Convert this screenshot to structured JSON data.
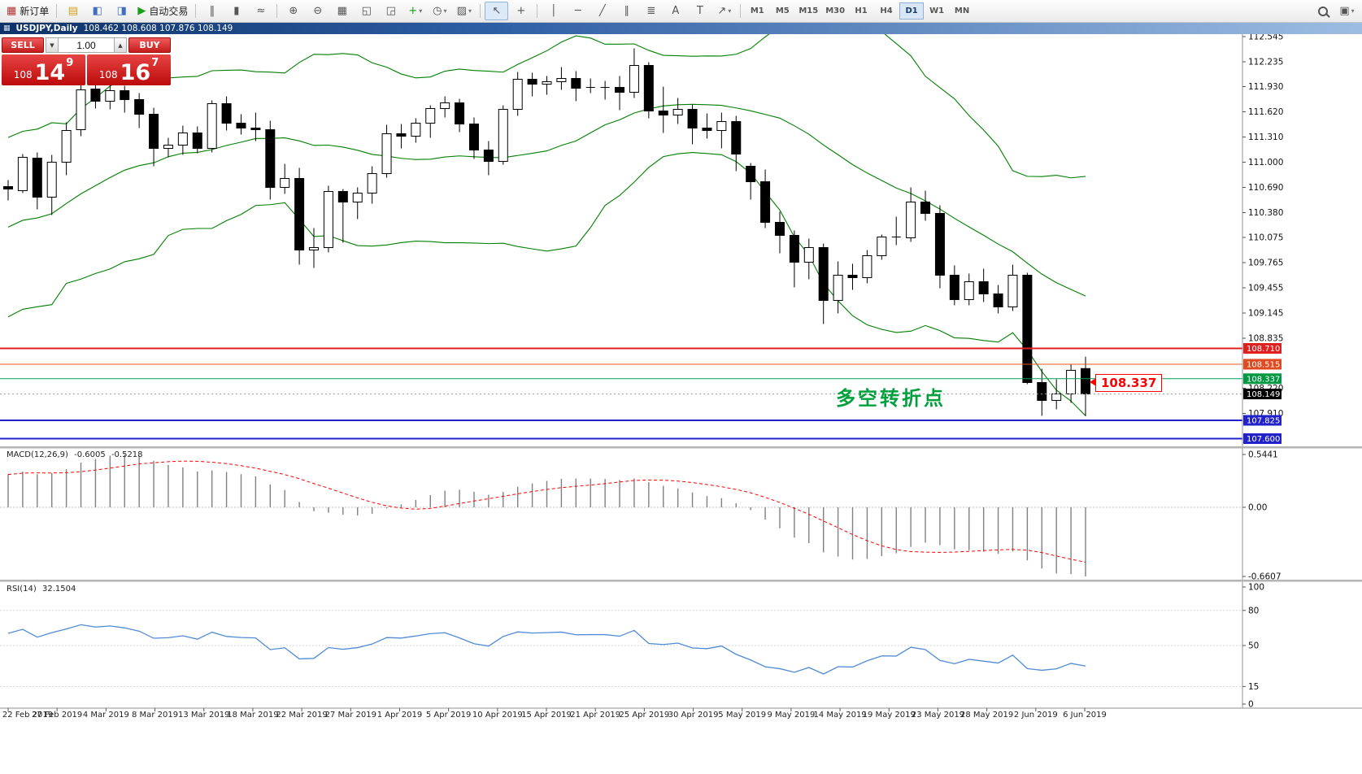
{
  "toolbar": {
    "items": [
      {
        "name": "new-order-button",
        "glyph": "▦",
        "color": "#b53333",
        "label": "新订单"
      },
      {
        "sep": true
      },
      {
        "name": "charts-icon",
        "glyph": "▤",
        "color": "#d4a017"
      },
      {
        "name": "navigator-icon",
        "glyph": "◧",
        "color": "#3f6fbf"
      },
      {
        "name": "terminal-icon",
        "glyph": "◨",
        "color": "#3f6fbf"
      },
      {
        "name": "autotrading-button",
        "glyph": "▶",
        "color": "#18a018",
        "label": "自动交易"
      },
      {
        "sep": true
      },
      {
        "name": "bar-chart-icon",
        "glyph": "‖"
      },
      {
        "name": "candlestick-chart-icon",
        "glyph": "▮"
      },
      {
        "name": "line-chart-icon",
        "glyph": "≈"
      },
      {
        "sep": true
      },
      {
        "name": "zoom-in-icon",
        "glyph": "⊕"
      },
      {
        "name": "zoom-out-icon",
        "glyph": "⊖"
      },
      {
        "name": "tile-windows-icon",
        "glyph": "▦"
      },
      {
        "name": "cascade-windows-icon",
        "glyph": "◱"
      },
      {
        "name": "arrange-windows-icon",
        "glyph": "◲"
      },
      {
        "name": "indicators-icon",
        "glyph": "+",
        "color": "#18a018",
        "dropdown": true
      },
      {
        "name": "periods-icon",
        "glyph": "◷",
        "dropdown": true
      },
      {
        "name": "templates-icon",
        "glyph": "▨",
        "dropdown": true
      },
      {
        "sep": true
      },
      {
        "name": "cursor-icon",
        "glyph": "↖",
        "active": true
      },
      {
        "name": "crosshair-icon",
        "glyph": "+"
      },
      {
        "sep": true
      },
      {
        "name": "vertical-line-icon",
        "glyph": "│"
      },
      {
        "name": "horizontal-line-icon",
        "glyph": "─"
      },
      {
        "name": "trendline-icon",
        "glyph": "╱"
      },
      {
        "name": "channel-icon",
        "glyph": "∥"
      },
      {
        "name": "fibonacci-icon",
        "glyph": "≣"
      },
      {
        "name": "text-icon",
        "glyph": "A"
      },
      {
        "name": "label-icon",
        "glyph": "T"
      },
      {
        "name": "arrows-icon",
        "glyph": "↗",
        "dropdown": true
      },
      {
        "sep": true
      },
      {
        "timeframes": true
      },
      {
        "spacer": true
      },
      {
        "name": "search-icon",
        "lens": true
      },
      {
        "name": "help-icon",
        "glyph": "▣",
        "dropdown": true
      }
    ],
    "timeframes": {
      "list": [
        "M1",
        "M5",
        "M15",
        "M30",
        "H1",
        "H4",
        "D1",
        "W1",
        "MN"
      ],
      "active": "D1"
    }
  },
  "title_bar": {
    "symbol": "USDJPY,Daily",
    "ohlc": "108.462 108.608 107.876 108.149"
  },
  "one_click": {
    "sell_label": "SELL",
    "buy_label": "BUY",
    "volume": "1.00",
    "sell_price": {
      "prefix": "108",
      "pips": "14",
      "sup": "9"
    },
    "buy_price": {
      "prefix": "108",
      "pips": "16",
      "sup": "7"
    }
  },
  "chart_data": {
    "type": "candlestick",
    "symbol": "USDJPY",
    "timeframe": "Daily",
    "ylim": [
      107.515,
      112.575
    ],
    "y_plain_ticks": [
      "112.545",
      "112.235",
      "111.930",
      "111.620",
      "111.310",
      "111.000",
      "110.690",
      "110.380",
      "110.075",
      "109.765",
      "109.455",
      "109.145",
      "108.835",
      "108.220",
      "107.910"
    ],
    "x_labels": [
      "22 Feb 2019",
      "27 Feb 2019",
      "4 Mar 2019",
      "8 Mar 2019",
      "13 Mar 2019",
      "18 Mar 2019",
      "22 Mar 2019",
      "27 Mar 2019",
      "1 Apr 2019",
      "5 Apr 2019",
      "10 Apr 2019",
      "15 Apr 2019",
      "21 Apr 2019",
      "25 Apr 2019",
      "30 Apr 2019",
      "5 May 2019",
      "9 May 2019",
      "14 May 2019",
      "19 May 2019",
      "23 May 2019",
      "28 May 2019",
      "2 Jun 2019",
      "6 Jun 2019"
    ],
    "candles": [
      [
        110.7,
        110.78,
        110.53,
        110.67
      ],
      [
        110.65,
        111.1,
        110.62,
        111.06
      ],
      [
        111.05,
        111.12,
        110.42,
        110.57
      ],
      [
        110.57,
        111.09,
        110.35,
        111.0
      ],
      [
        111.0,
        111.49,
        110.84,
        111.39
      ],
      [
        111.4,
        112.08,
        111.32,
        111.89
      ],
      [
        111.9,
        112.14,
        111.66,
        111.75
      ],
      [
        111.75,
        111.95,
        111.65,
        111.88
      ],
      [
        111.88,
        111.94,
        111.61,
        111.77
      ],
      [
        111.77,
        111.85,
        111.42,
        111.59
      ],
      [
        111.59,
        111.67,
        110.95,
        111.17
      ],
      [
        111.17,
        111.3,
        111.06,
        111.21
      ],
      [
        111.21,
        111.45,
        111.09,
        111.36
      ],
      [
        111.36,
        111.44,
        111.11,
        111.17
      ],
      [
        111.17,
        111.76,
        111.12,
        111.72
      ],
      [
        111.72,
        111.81,
        111.39,
        111.48
      ],
      [
        111.48,
        111.59,
        111.34,
        111.42
      ],
      [
        111.42,
        111.61,
        111.26,
        111.4
      ],
      [
        111.4,
        111.51,
        110.54,
        110.69
      ],
      [
        110.69,
        110.98,
        110.61,
        110.8
      ],
      [
        110.8,
        110.93,
        109.74,
        109.92
      ],
      [
        109.92,
        110.19,
        109.7,
        109.95
      ],
      [
        109.95,
        110.71,
        109.89,
        110.64
      ],
      [
        110.64,
        110.67,
        110.01,
        110.51
      ],
      [
        110.51,
        110.69,
        110.3,
        110.62
      ],
      [
        110.62,
        110.95,
        110.49,
        110.86
      ],
      [
        110.86,
        111.46,
        110.81,
        111.35
      ],
      [
        111.35,
        111.47,
        111.17,
        111.32
      ],
      [
        111.32,
        111.54,
        111.24,
        111.48
      ],
      [
        111.48,
        111.7,
        111.3,
        111.66
      ],
      [
        111.66,
        111.81,
        111.55,
        111.73
      ],
      [
        111.73,
        111.78,
        111.37,
        111.47
      ],
      [
        111.47,
        111.55,
        111.04,
        111.15
      ],
      [
        111.15,
        111.26,
        110.84,
        111.01
      ],
      [
        111.01,
        111.7,
        110.97,
        111.65
      ],
      [
        111.65,
        112.11,
        111.57,
        112.02
      ],
      [
        112.02,
        112.1,
        111.81,
        111.96
      ],
      [
        111.96,
        112.06,
        111.83,
        111.99
      ],
      [
        111.99,
        112.17,
        111.89,
        112.03
      ],
      [
        112.03,
        112.12,
        111.75,
        111.91
      ],
      [
        111.91,
        112.03,
        111.85,
        111.92
      ],
      [
        111.92,
        112.0,
        111.77,
        111.92
      ],
      [
        111.92,
        112.06,
        111.64,
        111.86
      ],
      [
        111.86,
        112.4,
        111.79,
        112.19
      ],
      [
        112.19,
        112.23,
        111.54,
        111.63
      ],
      [
        111.63,
        111.93,
        111.36,
        111.58
      ],
      [
        111.58,
        111.79,
        111.47,
        111.65
      ],
      [
        111.65,
        111.71,
        111.22,
        111.42
      ],
      [
        111.42,
        111.6,
        111.29,
        111.39
      ],
      [
        111.39,
        111.61,
        111.17,
        111.5
      ],
      [
        111.5,
        111.57,
        110.89,
        111.1
      ],
      [
        110.95,
        110.99,
        110.54,
        110.76
      ],
      [
        110.76,
        110.91,
        110.19,
        110.26
      ],
      [
        110.26,
        110.39,
        109.88,
        110.1
      ],
      [
        110.1,
        110.16,
        109.46,
        109.77
      ],
      [
        109.77,
        110.06,
        109.56,
        109.95
      ],
      [
        109.95,
        110.0,
        109.01,
        109.3
      ],
      [
        109.3,
        109.78,
        109.14,
        109.61
      ],
      [
        109.61,
        109.75,
        109.43,
        109.58
      ],
      [
        109.58,
        109.92,
        109.51,
        109.85
      ],
      [
        109.85,
        110.11,
        109.8,
        110.08
      ],
      [
        110.08,
        110.33,
        109.98,
        110.07
      ],
      [
        110.07,
        110.69,
        110.02,
        110.51
      ],
      [
        110.51,
        110.65,
        110.28,
        110.37
      ],
      [
        110.37,
        110.47,
        109.45,
        109.61
      ],
      [
        109.61,
        109.73,
        109.24,
        109.31
      ],
      [
        109.31,
        109.63,
        109.24,
        109.53
      ],
      [
        109.53,
        109.69,
        109.28,
        109.38
      ],
      [
        109.38,
        109.49,
        109.14,
        109.22
      ],
      [
        109.22,
        109.74,
        109.17,
        109.61
      ],
      [
        109.61,
        109.64,
        108.27,
        108.29
      ],
      [
        108.29,
        108.46,
        107.88,
        108.07
      ],
      [
        108.07,
        108.33,
        107.96,
        108.15
      ],
      [
        108.15,
        108.51,
        108.04,
        108.44
      ],
      [
        108.462,
        108.608,
        107.876,
        108.149
      ]
    ],
    "warmup_closes": [
      109.37,
      109.99,
      109.96,
      108.89,
      109.5,
      109.74,
      109.89,
      109.95,
      110.47,
      110.47,
      109.73,
      110.48,
      110.98,
      111.03,
      110.46,
      110.62,
      110.51,
      110.64,
      110.67
    ],
    "price_lines": [
      {
        "value": 108.71,
        "color": "#e02020",
        "width": 2,
        "label": "108.710",
        "label_bg": "#e02020"
      },
      {
        "value": 108.515,
        "color": "#e05a20",
        "width": 1,
        "label": "108.515",
        "label_bg": "#e04a20"
      },
      {
        "value": 108.337,
        "color": "#00a050",
        "width": 1,
        "label": "108.337",
        "label_bg": "#009840"
      },
      {
        "value": 107.825,
        "color": "#2222cc",
        "width": 2,
        "label": "107.825",
        "label_bg": "#2222cc"
      },
      {
        "value": 107.6,
        "color": "#2222cc",
        "width": 2,
        "label": "107.600",
        "label_bg": "#2222cc"
      }
    ],
    "current_price": {
      "value": 108.149,
      "label": "108.149",
      "label_bg": "#000000"
    },
    "annotation": {
      "text": "多空转折点",
      "color": "#00A03C"
    },
    "callout": {
      "text": "108.337",
      "color": "#ff0000"
    },
    "bollinger": {
      "period": 20,
      "deviation": 2,
      "color": "#008000"
    },
    "candle_colors": {
      "bull_fill": "#ffffff",
      "bear_fill": "#000000",
      "stroke": "#000000"
    },
    "macd": {
      "label": "MACD(12,26,9)",
      "value_main": "-0.6005",
      "value_signal": "-0.5218",
      "axis_labels": [
        "0.5441",
        "0.00",
        "-0.6607"
      ],
      "hist_color": "#808080",
      "signal_color": "#ff0000"
    },
    "rsi": {
      "label": "RSI(14)",
      "value": "32.1504",
      "axis_labels": [
        "100",
        "80",
        "50",
        "15",
        "0"
      ],
      "levels": [
        80,
        50,
        15
      ],
      "color": "#4f8bd6"
    }
  }
}
